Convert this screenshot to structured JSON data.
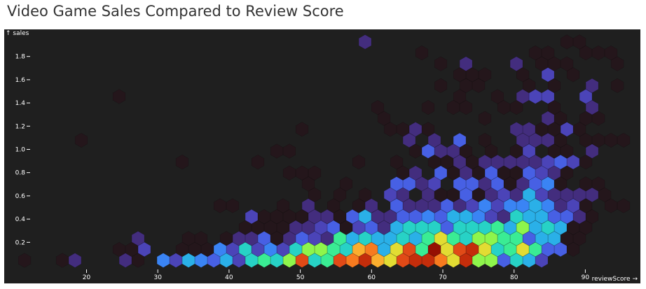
{
  "title": "Video Game Sales Compared to Review Score",
  "chart_data": {
    "type": "heatmap",
    "subtype": "hexbin",
    "title": "Video Game Sales Compared to Review Score",
    "xlabel": "reviewScore →",
    "ylabel": "↑ sales",
    "xlim": [
      8.4,
      97.7
    ],
    "ylim": [
      -0.15,
      2.03
    ],
    "x_ticks": [
      20,
      30,
      40,
      50,
      60,
      70,
      80,
      90
    ],
    "y_ticks": [
      0.2,
      0.4,
      0.6,
      0.8,
      1.0,
      1.2,
      1.4,
      1.6,
      1.8
    ],
    "y_tick_labels": [
      "0.2",
      "0.4",
      "0.6",
      "0.8",
      "1.0",
      "1.2",
      "1.4",
      "1.6",
      "1.8"
    ],
    "grid": false,
    "background": "#1f1f1f",
    "colorscale": "turbo",
    "level_colors": {
      "0": "#24161b",
      "1": "#432d7e",
      "2": "#4b44b8",
      "3": "#4760e4",
      "4": "#3a84f4",
      "5": "#2ab0e8",
      "6": "#27d2c6",
      "7": "#3aec94",
      "8": "#8ef54c",
      "9": "#e2dc33",
      "a": "#fbae2e",
      "b": "#f77b1f",
      "c": "#e14a17",
      "d": "#c42d0b",
      "e": "#950f03"
    },
    "bin_x_origin": 9.53,
    "bin_x_step": 1.77,
    "bins": [
      {
        "sales": 0.045,
        "levels": ".0..01...10.42543526768c67cbda9cddb9d883652......."
      },
      {
        "sales": 0.139,
        "levels": "........002..00042624268876ab59c7e9cd96797330....."
      },
      {
        "sales": 0.233,
        "levels": "..........1...00.01130132175655657976887735500...."
      },
      {
        "sales": 0.327,
        "levels": "..................0000112302315666366675856500...."
      },
      {
        "sales": 0.421,
        "levels": "...................2000011035113343554216553310..."
      },
      {
        "sales": 0.515,
        "levels": "................00...0.1.0.01.3111312424454120.00."
      },
      {
        "sales": 0.609,
        "levels": "........................0.0.0.21.100301215211110.."
      },
      {
        "sales": 0.703,
        "levels": ".......................0..0...3312.331301340.00..."
      },
      {
        "sales": 0.797,
        "levels": "......................000......01.30103003210....."
      },
      {
        "sales": 0.891,
        "levels": ".............0.....0.......0..0..0010111112320...."
      },
      {
        "sales": 0.985,
        "levels": ".....................00.........03110.0.02.00.1..."
      },
      {
        "sales": 1.079,
        "levels": ".....0.........................1.1.3.0..1110.0000."
      },
      {
        "sales": 1.173,
        "levels": ".......................0......0010......110020...."
      },
      {
        "sales": 1.267,
        "levels": ".............................0.......0....10.00..."
      },
      {
        "sales": 1.361,
        "levels": ".............................0...0.00..00..0..1..."
      },
      {
        "sales": 1.455,
        "levels": "........0..........................0..0.122..2...."
      },
      {
        "sales": 1.549,
        "levels": "..................................0.00...0.0..1.0."
      },
      {
        "sales": 1.643,
        "levels": "...................................000..0.2.0....."
      },
      {
        "sales": 1.737,
        "levels": "..................................0.1...1.000...0."
      },
      {
        "sales": 1.831,
        "levels": "................................0........00..000.."
      },
      {
        "sales": 1.925,
        "levels": "............................1...............00...."
      }
    ]
  }
}
